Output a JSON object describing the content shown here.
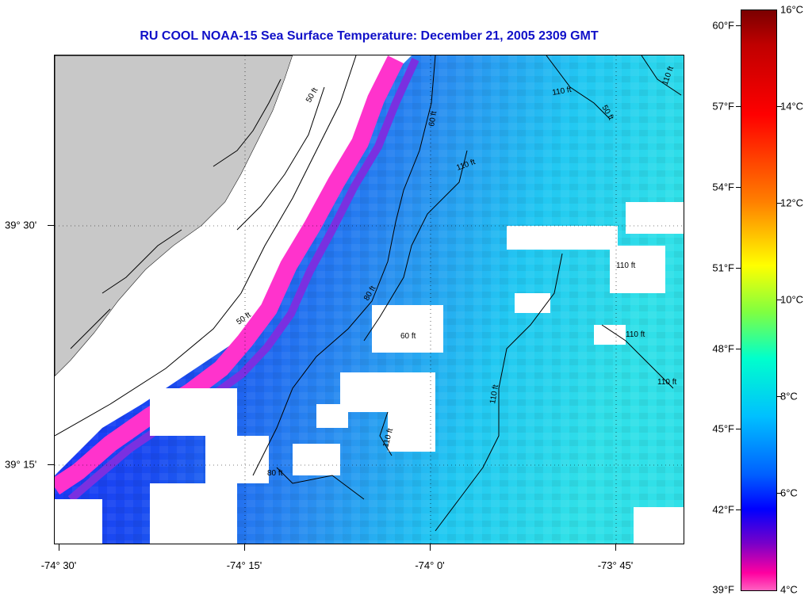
{
  "title": "RU COOL  NOAA-15  Sea Surface Temperature:  December 21, 2005 2309 GMT",
  "map": {
    "lon_labels": [
      "-74° 30'",
      "-74° 15'",
      "-74° 0'",
      "-73° 45'"
    ],
    "lat_labels": [
      "39° 30'",
      "39° 15'"
    ],
    "land_color": "#c8c8c8",
    "contour_labels": [
      "50 ft",
      "60 ft",
      "80 ft",
      "110 ft",
      "110 ft",
      "110 ft",
      "110 ft",
      "110 ft",
      "60 ft",
      "50 ft",
      "80 ft",
      "110 ft",
      "50 ft",
      "110 ft",
      "110 ft"
    ]
  },
  "colorbar": {
    "celsius_labels": [
      "16°C",
      "14°C",
      "12°C",
      "10°C",
      "8°C",
      "6°C",
      "4°C"
    ],
    "fahrenheit_labels": [
      "60°F",
      "57°F",
      "54°F",
      "51°F",
      "48°F",
      "45°F",
      "42°F",
      "39°F"
    ]
  }
}
